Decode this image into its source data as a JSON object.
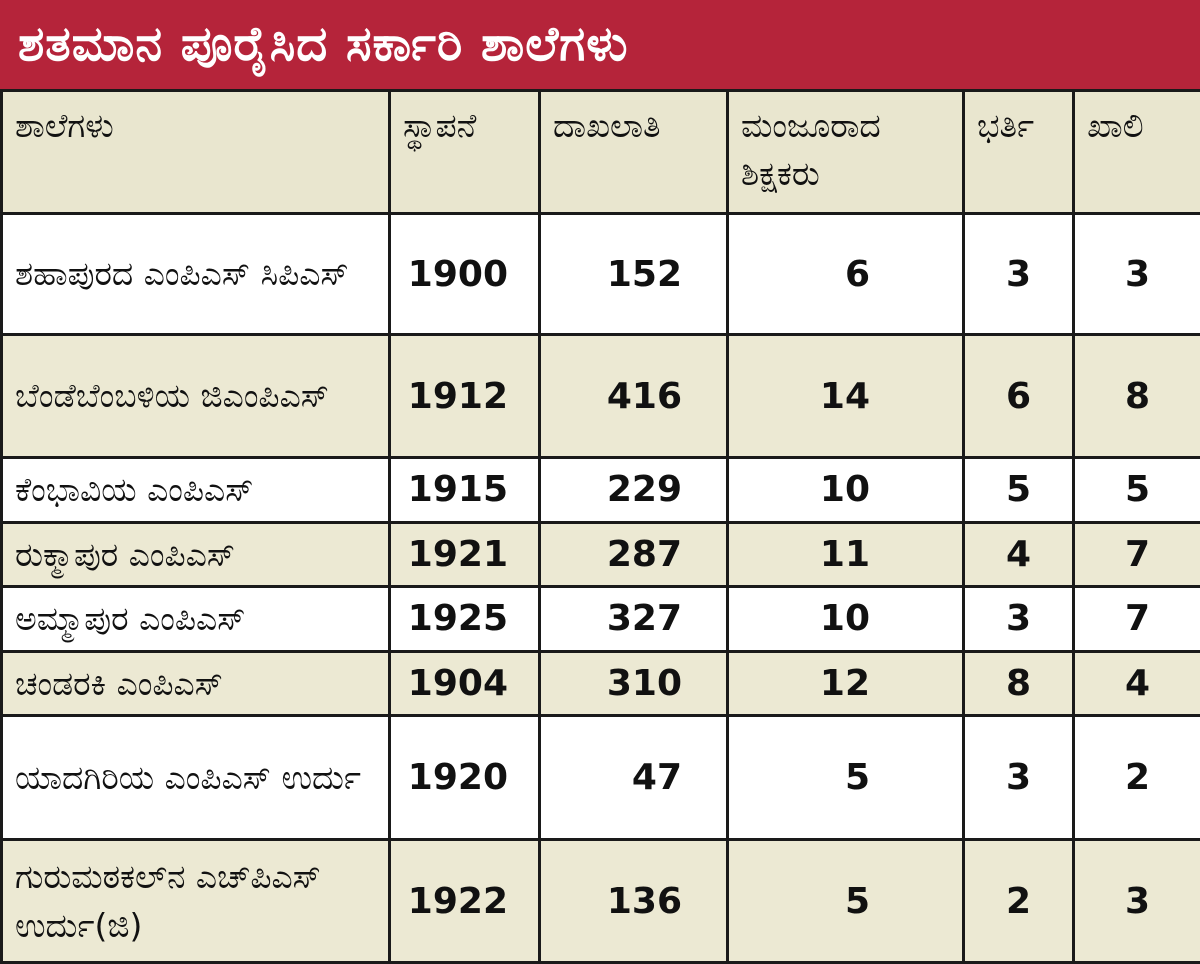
{
  "title": "ಶತಮಾನ ಪೂರೈಸಿದ ಸರ್ಕಾರಿ ಶಾಲೆಗಳು",
  "table": {
    "headers": [
      "ಶಾಲೆಗಳು",
      "ಸ್ಥಾಪನೆ",
      "ದಾಖಲಾತಿ",
      "ಮಂಜೂರಾದ ಶಿಕ್ಷಕರು",
      "ಭರ್ತಿ",
      "ಖಾಲಿ"
    ],
    "rows": [
      {
        "school": "ಶಹಾಪುರದ ಎಂಪಿಎಸ್ ಸಿಪಿಎಸ್",
        "established": "1900",
        "enrollment": "152",
        "sanctioned": "6",
        "filled": "3",
        "vacant": "3"
      },
      {
        "school": "ಬೆಂಡೆಬೆಂಬಳಿಯ ಜಿಎಂಪಿಎಸ್",
        "established": "1912",
        "enrollment": "416",
        "sanctioned": "14",
        "filled": "6",
        "vacant": "8"
      },
      {
        "school": "ಕೆಂಭಾವಿಯ ಎಂಪಿಎಸ್",
        "established": "1915",
        "enrollment": "229",
        "sanctioned": "10",
        "filled": "5",
        "vacant": "5"
      },
      {
        "school": "ರುಕ್ಮಾಪುರ ಎಂಪಿಎಸ್",
        "established": "1921",
        "enrollment": "287",
        "sanctioned": "11",
        "filled": "4",
        "vacant": "7"
      },
      {
        "school": "ಅಮ್ಮಾಪುರ ಎಂಪಿಎಸ್",
        "established": "1925",
        "enrollment": "327",
        "sanctioned": "10",
        "filled": "3",
        "vacant": "7"
      },
      {
        "school": "ಚಂಡರಕಿ ಎಂಪಿಎಸ್",
        "established": "1904",
        "enrollment": "310",
        "sanctioned": "12",
        "filled": "8",
        "vacant": "4"
      },
      {
        "school": "ಯಾದಗಿರಿಯ ಎಂಪಿಎಸ್ ಉರ್ದು",
        "established": "1920",
        "enrollment": "47",
        "sanctioned": "5",
        "filled": "3",
        "vacant": "2"
      },
      {
        "school": "ಗುರುಮಠಕಲ್‌ನ ಎಚ್‌ಪಿಎಸ್ ಉರ್ದು(ಜಿ)",
        "established": "1922",
        "enrollment": "136",
        "sanctioned": "5",
        "filled": "2",
        "vacant": "3"
      }
    ]
  },
  "colors": {
    "title_bg": "#b5243a",
    "header_bg": "#e9e6cf",
    "alt_row_bg": "#ece9d3"
  }
}
